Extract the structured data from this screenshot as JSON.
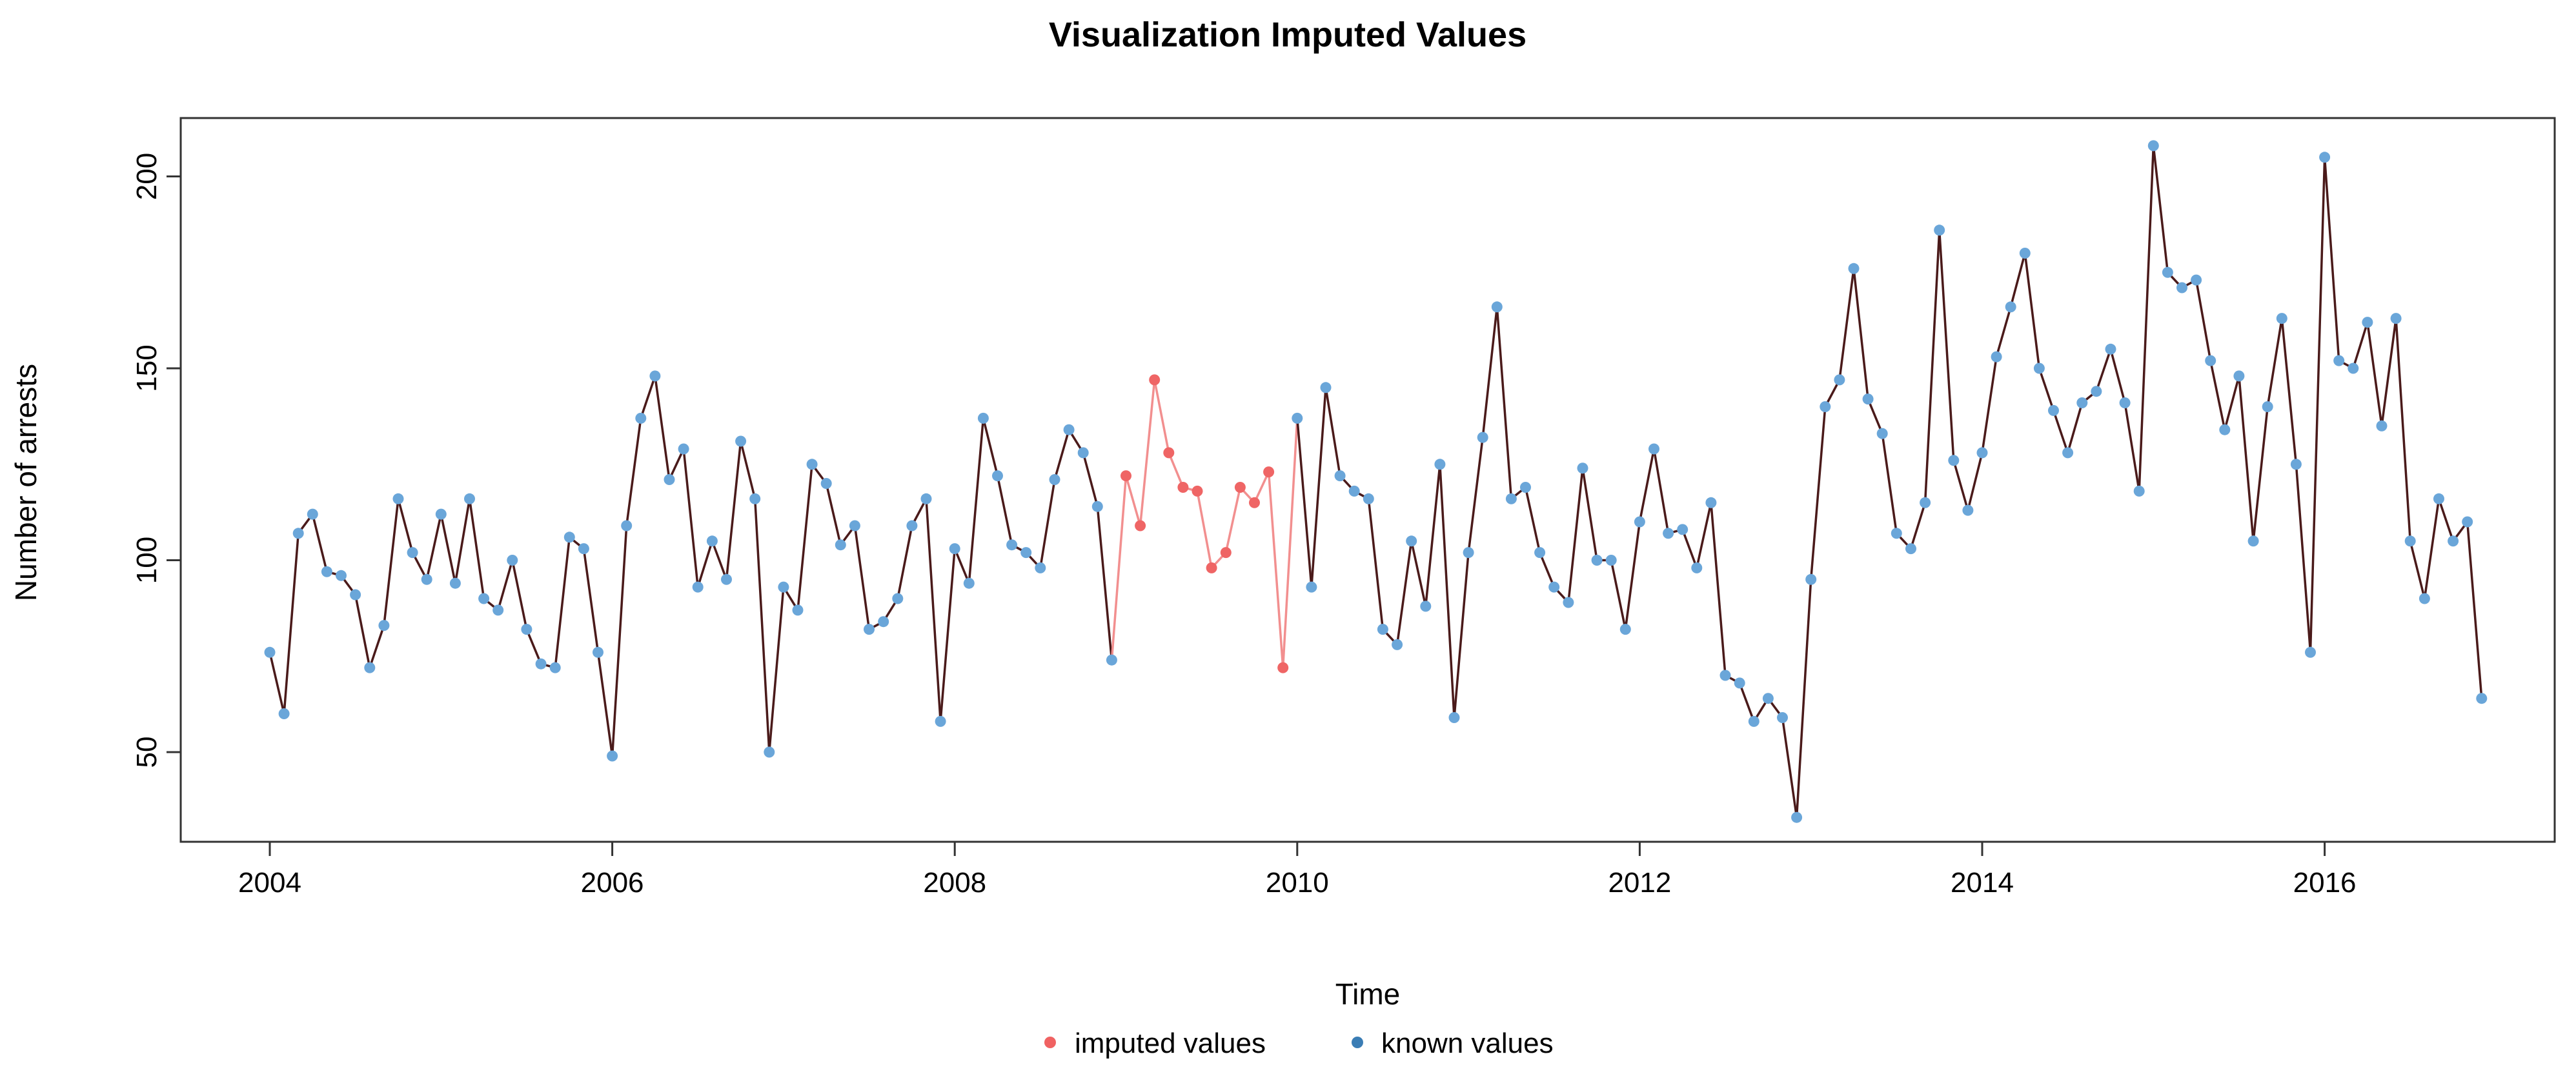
{
  "chart_data": {
    "type": "line",
    "title": "Visualization Imputed Values",
    "xlabel": "Time",
    "ylabel": "Number of arrests",
    "xlim": [
      2004,
      2017
    ],
    "ylim": [
      30,
      210
    ],
    "x_ticks": [
      2004,
      2006,
      2008,
      2010,
      2012,
      2014,
      2016
    ],
    "y_ticks": [
      50,
      100,
      150,
      200
    ],
    "x_start": 2004,
    "x_step": 0.08333333,
    "series": [
      {
        "name": "arrests",
        "values": [
          76,
          60,
          107,
          112,
          97,
          96,
          91,
          72,
          83,
          116,
          102,
          95,
          112,
          94,
          116,
          90,
          87,
          100,
          82,
          73,
          72,
          106,
          103,
          76,
          49,
          109,
          137,
          148,
          121,
          129,
          93,
          105,
          95,
          131,
          116,
          50,
          93,
          87,
          125,
          120,
          104,
          109,
          82,
          84,
          90,
          109,
          116,
          58,
          103,
          94,
          137,
          122,
          104,
          102,
          98,
          121,
          134,
          128,
          114,
          74,
          122,
          109,
          147,
          128,
          119,
          118,
          98,
          102,
          119,
          115,
          123,
          72,
          137,
          93,
          145,
          122,
          118,
          116,
          82,
          78,
          105,
          88,
          125,
          59,
          102,
          132,
          166,
          116,
          119,
          102,
          93,
          89,
          124,
          100,
          100,
          82,
          110,
          129,
          107,
          108,
          98,
          115,
          70,
          68,
          58,
          64,
          59,
          33,
          95,
          140,
          147,
          176,
          142,
          133,
          107,
          103,
          115,
          186,
          126,
          113,
          128,
          153,
          166,
          180,
          150,
          139,
          128,
          141,
          144,
          155,
          141,
          118,
          208,
          175,
          171,
          173,
          152,
          134,
          148,
          105,
          140,
          163,
          125,
          76,
          205,
          152,
          150,
          162,
          135,
          163,
          105,
          90,
          116,
          105,
          110,
          64
        ]
      }
    ],
    "imputed_index_range": [
      60,
      71
    ],
    "legend": {
      "position": "bottom",
      "items": [
        {
          "label": "imputed values",
          "color": "#f06262"
        },
        {
          "label": "known values",
          "color": "#3a7db5"
        }
      ]
    },
    "colors": {
      "known_point": "#6aa6d9",
      "imputed_point": "#ef6565",
      "imputed_line": "#f28f8f",
      "line": "#4a1a1a"
    }
  }
}
